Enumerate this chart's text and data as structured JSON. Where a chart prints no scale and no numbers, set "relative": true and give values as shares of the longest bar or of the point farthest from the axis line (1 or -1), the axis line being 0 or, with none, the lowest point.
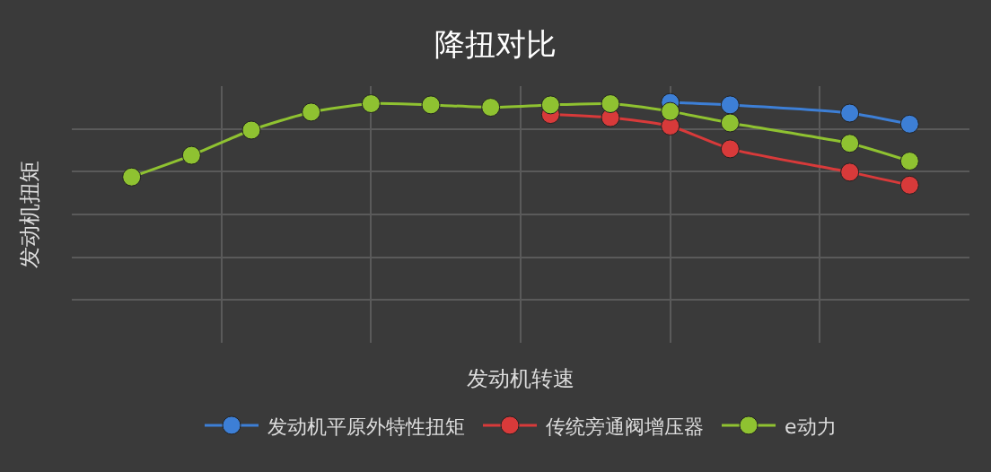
{
  "chart_data": {
    "type": "line",
    "title": "降扭对比",
    "xlabel": "发动机转速",
    "ylabel": "发动机扭矩",
    "relative": true,
    "categories": [
      null,
      null,
      null,
      null,
      null,
      null,
      null,
      null,
      null,
      null,
      null,
      null,
      null,
      null
    ],
    "series": [
      {
        "name": "发动机平原外特性扭矩",
        "color": "#3d7fd6",
        "values": [
          null,
          null,
          null,
          null,
          null,
          null,
          null,
          null,
          null,
          1.0,
          0.99,
          null,
          0.956,
          0.91
        ]
      },
      {
        "name": "传统旁通阀增压器",
        "color": "#d83a3a",
        "values": [
          null,
          null,
          null,
          null,
          null,
          null,
          null,
          0.95,
          0.937,
          0.902,
          0.807,
          null,
          0.71,
          0.656
        ]
      },
      {
        "name": "e动力",
        "color": "#8fc231",
        "values": [
          0.69,
          0.78,
          0.885,
          0.96,
          0.995,
          0.99,
          0.98,
          0.99,
          0.995,
          0.963,
          0.915,
          null,
          0.83,
          0.756
        ]
      }
    ],
    "grid": true,
    "legend": "bottom",
    "marker": "circle",
    "line_style": "solid"
  }
}
